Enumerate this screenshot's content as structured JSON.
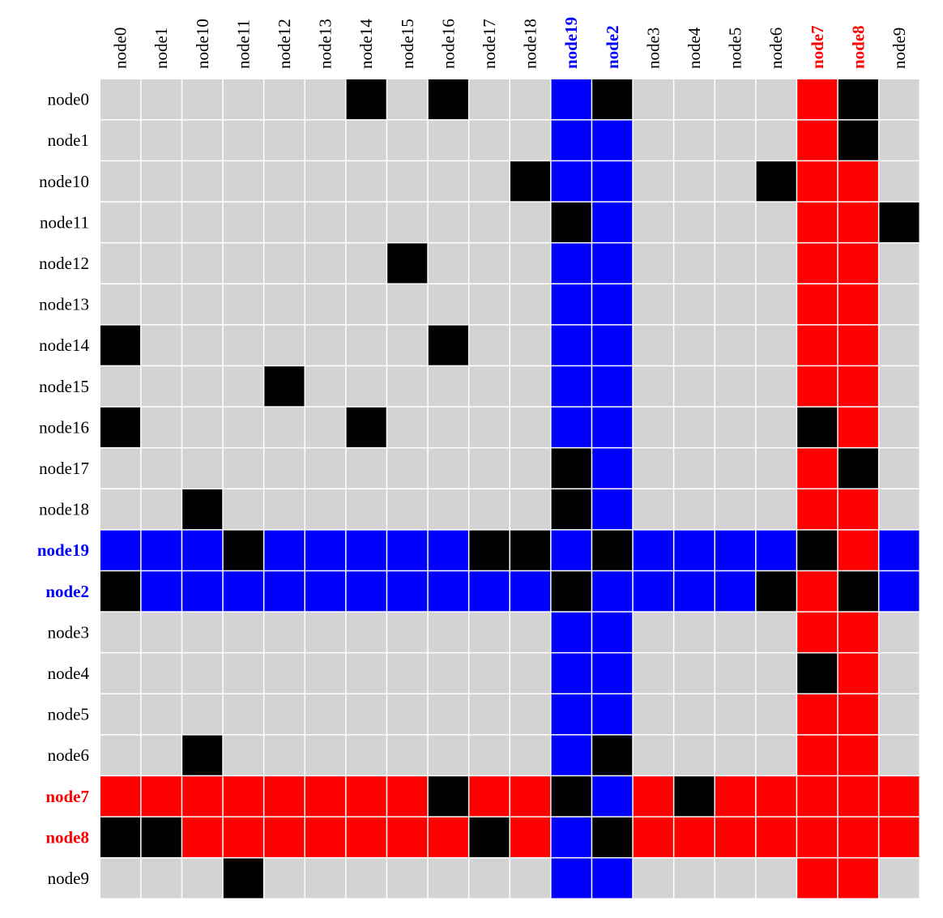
{
  "chart_data": {
    "type": "heatmap",
    "title": "",
    "xlabel": "",
    "ylabel": "",
    "nodes": [
      "node0",
      "node1",
      "node10",
      "node11",
      "node12",
      "node13",
      "node14",
      "node15",
      "node16",
      "node17",
      "node18",
      "node19",
      "node2",
      "node3",
      "node4",
      "node5",
      "node6",
      "node7",
      "node8",
      "node9"
    ],
    "highlight": {
      "node19": "blue",
      "node2": "blue",
      "node7": "red",
      "node8": "red"
    },
    "legend_colors": {
      "empty": "#d3d3d3",
      "edge": "#000000",
      "blue": "#0000ff",
      "red": "#ff0000",
      "label_default": "#000000",
      "gridline": "#ffffff"
    },
    "edges": {
      "node0": [
        "node14",
        "node16",
        "node2",
        "node8"
      ],
      "node1": [
        "node8"
      ],
      "node10": [
        "node18",
        "node6"
      ],
      "node11": [
        "node19",
        "node9"
      ],
      "node12": [
        "node15"
      ],
      "node13": [],
      "node14": [
        "node0",
        "node16"
      ],
      "node15": [
        "node12"
      ],
      "node16": [
        "node0",
        "node14",
        "node7"
      ],
      "node17": [
        "node19",
        "node8"
      ],
      "node18": [
        "node10",
        "node19"
      ],
      "node19": [
        "node11",
        "node17",
        "node18",
        "node2",
        "node7"
      ],
      "node2": [
        "node0",
        "node19",
        "node6",
        "node8"
      ],
      "node3": [],
      "node4": [
        "node7"
      ],
      "node5": [],
      "node6": [
        "node10",
        "node2"
      ],
      "node7": [
        "node16",
        "node19",
        "node4"
      ],
      "node8": [
        "node0",
        "node1",
        "node17",
        "node2"
      ],
      "node9": [
        "node11"
      ]
    }
  }
}
